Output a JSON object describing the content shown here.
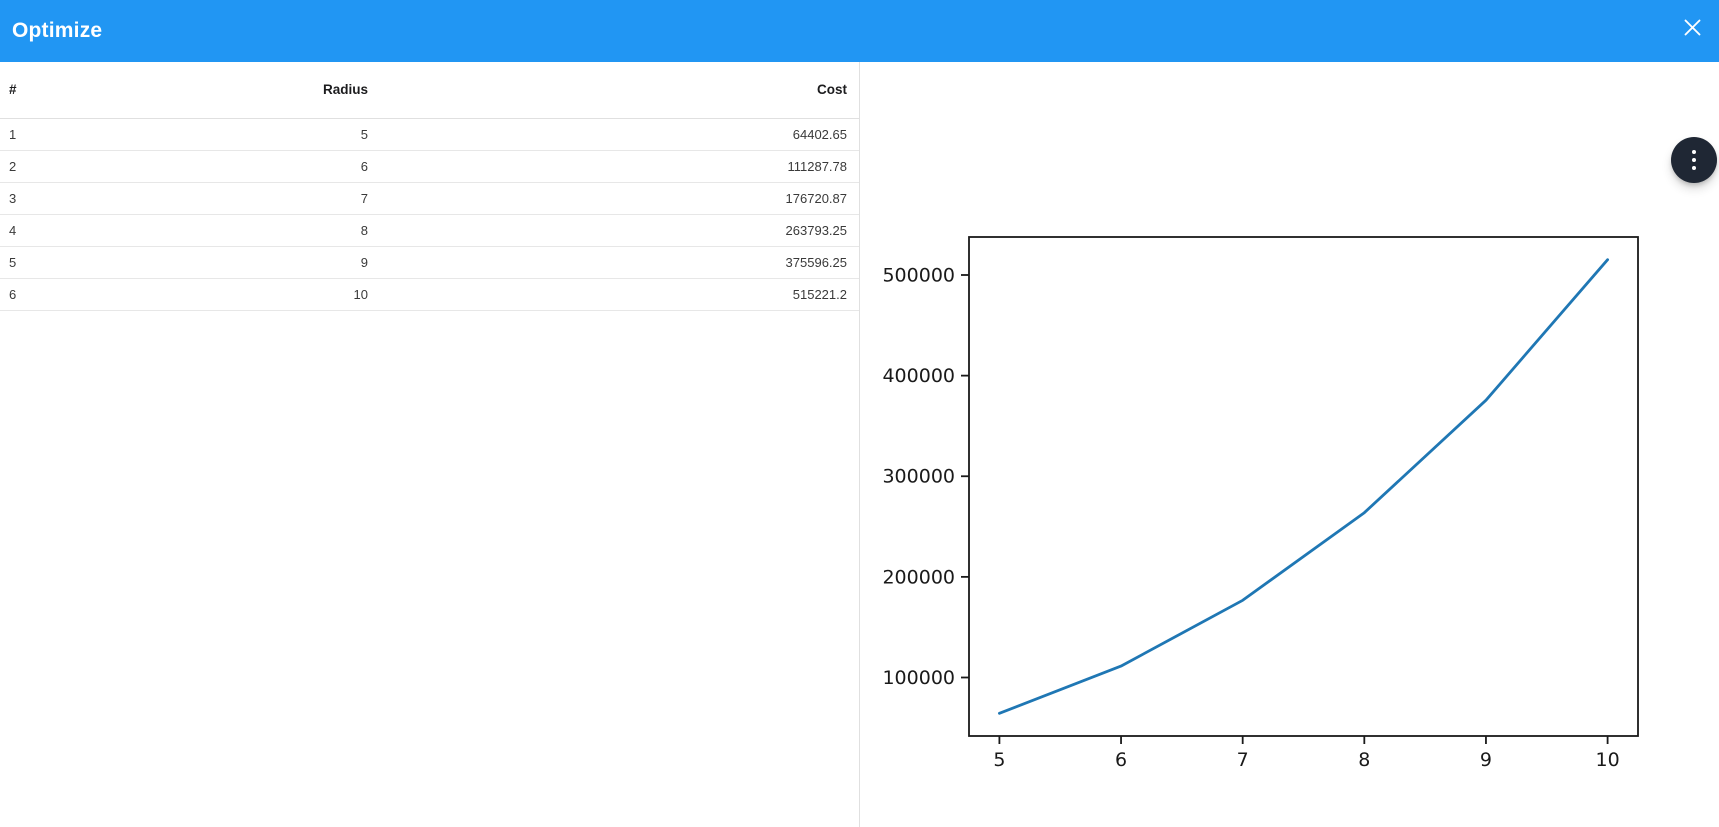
{
  "titlebar": {
    "title": "Optimize"
  },
  "colors": {
    "header_bg": "#2196f3",
    "fab_bg": "#1f2734",
    "divider": "#e0e0e0",
    "line": "#1f77b4",
    "axis": "#1a1a1a"
  },
  "table": {
    "columns": [
      {
        "key": "index",
        "label": "#",
        "align": "left"
      },
      {
        "key": "radius",
        "label": "Radius",
        "align": "right"
      },
      {
        "key": "cost",
        "label": "Cost",
        "align": "right"
      }
    ],
    "rows": [
      {
        "index": "1",
        "radius": "5",
        "cost": "64402.65"
      },
      {
        "index": "2",
        "radius": "6",
        "cost": "111287.78"
      },
      {
        "index": "3",
        "radius": "7",
        "cost": "176720.87"
      },
      {
        "index": "4",
        "radius": "8",
        "cost": "263793.25"
      },
      {
        "index": "5",
        "radius": "9",
        "cost": "375596.25"
      },
      {
        "index": "6",
        "radius": "10",
        "cost": "515221.2"
      }
    ]
  },
  "chart_data": {
    "type": "line",
    "x": [
      5,
      6,
      7,
      8,
      9,
      10
    ],
    "y": [
      64402.65,
      111287.78,
      176720.87,
      263793.25,
      375596.25,
      515221.2
    ],
    "title": "",
    "xlabel": "",
    "ylabel": "",
    "x_ticks": [
      5,
      6,
      7,
      8,
      9,
      10
    ],
    "y_ticks": [
      100000,
      200000,
      300000,
      400000,
      500000
    ],
    "xlim": [
      4.75,
      10.25
    ],
    "ylim": [
      41862,
      537762
    ],
    "line_color": "#1f77b4",
    "grid": false,
    "legend": "none"
  }
}
